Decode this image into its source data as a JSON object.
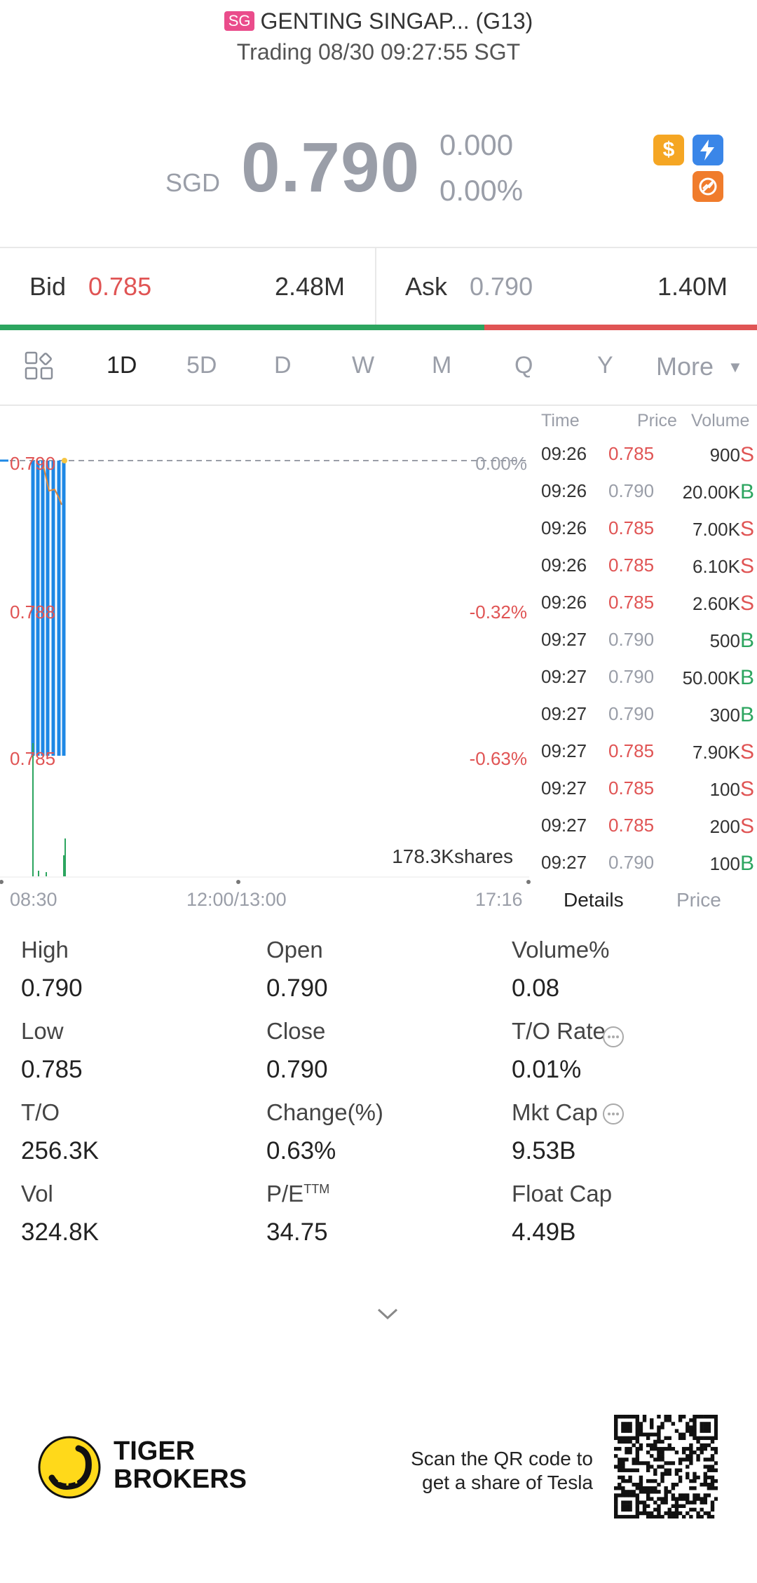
{
  "header": {
    "market_badge": "SG",
    "title": "GENTING SINGAP... (G13)",
    "status": "Trading 08/30 09:27:55 SGT"
  },
  "quote": {
    "currency": "SGD",
    "price": "0.790",
    "change": "0.000",
    "change_pct": "0.00%"
  },
  "icons": {
    "dollar": "dollar-icon",
    "flash": "flash-icon",
    "ban": "no-short-icon"
  },
  "bid_ask": {
    "bid_label": "Bid",
    "bid_price": "0.785",
    "bid_size": "2.48M",
    "ask_label": "Ask",
    "ask_price": "0.790",
    "ask_size": "1.40M",
    "bid_ratio": 0.64
  },
  "tabs": [
    "1D",
    "5D",
    "D",
    "W",
    "M",
    "Q",
    "Y",
    "More"
  ],
  "chart": {
    "y_labels": [
      "0.790",
      "0.788",
      "0.785"
    ],
    "pct_labels": [
      "0.00%",
      "-0.32%",
      "-0.63%"
    ],
    "volume_label": "178.3Kshares",
    "x_labels": [
      "08:30",
      "12:00/13:00",
      "17:16"
    ]
  },
  "trades": {
    "headers": [
      "Time",
      "Price",
      "Volume"
    ],
    "rows": [
      {
        "time": "09:26",
        "price": "0.785",
        "volume": "900",
        "side": "S"
      },
      {
        "time": "09:26",
        "price": "0.790",
        "volume": "20.00K",
        "side": "B"
      },
      {
        "time": "09:26",
        "price": "0.785",
        "volume": "7.00K",
        "side": "S"
      },
      {
        "time": "09:26",
        "price": "0.785",
        "volume": "6.10K",
        "side": "S"
      },
      {
        "time": "09:26",
        "price": "0.785",
        "volume": "2.60K",
        "side": "S"
      },
      {
        "time": "09:27",
        "price": "0.790",
        "volume": "500",
        "side": "B"
      },
      {
        "time": "09:27",
        "price": "0.790",
        "volume": "50.00K",
        "side": "B"
      },
      {
        "time": "09:27",
        "price": "0.790",
        "volume": "300",
        "side": "B"
      },
      {
        "time": "09:27",
        "price": "0.785",
        "volume": "7.90K",
        "side": "S"
      },
      {
        "time": "09:27",
        "price": "0.785",
        "volume": "100",
        "side": "S"
      },
      {
        "time": "09:27",
        "price": "0.785",
        "volume": "200",
        "side": "S"
      },
      {
        "time": "09:27",
        "price": "0.790",
        "volume": "100",
        "side": "B"
      }
    ],
    "tab_details": "Details",
    "tab_price": "Price"
  },
  "stats": [
    {
      "label": "High",
      "value": "0.790"
    },
    {
      "label": "Open",
      "value": "0.790"
    },
    {
      "label": "Volume%",
      "value": "0.08"
    },
    {
      "label": "Low",
      "value": "0.785"
    },
    {
      "label": "Close",
      "value": "0.790"
    },
    {
      "label": "T/O Rate",
      "value": "0.01%"
    },
    {
      "label": "T/O",
      "value": "256.3K"
    },
    {
      "label": "Change(%)",
      "value": "0.63%"
    },
    {
      "label": "Mkt Cap",
      "value": "9.53B"
    },
    {
      "label": "Vol",
      "value": "324.8K"
    },
    {
      "label": "P/E",
      "label_sup": "TTM",
      "value": "34.75"
    },
    {
      "label": "Float Cap",
      "value": "4.49B"
    }
  ],
  "footer": {
    "brand_line1": "TIGER",
    "brand_line2": "BROKERS",
    "promo_line1": "Scan the QR code to",
    "promo_line2": "get a share of Tesla"
  },
  "colors": {
    "up": "#2ca55f",
    "down": "#e05454",
    "neutral": "#9a9ea8",
    "chart_line": "#1e88e5"
  }
}
